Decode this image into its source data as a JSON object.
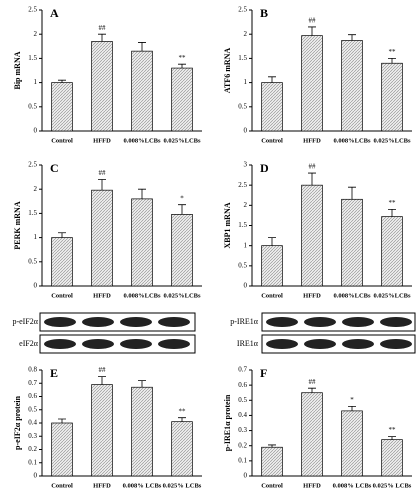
{
  "chart_data": [
    {
      "type": "bar",
      "title": "A",
      "y_label": "Bip mRNA",
      "categories": [
        "Control",
        "HFFD",
        "0.008%LCBs",
        "0.025%LCBs"
      ],
      "values": [
        1.0,
        1.85,
        1.65,
        1.3
      ],
      "errors": [
        0.05,
        0.15,
        0.18,
        0.08
      ],
      "markers": [
        null,
        "##",
        null,
        "**"
      ],
      "color": "#d9d9d9",
      "ylim": [
        0,
        2.5
      ],
      "yticks": [
        0,
        0.5,
        1,
        1.5,
        2,
        2.5
      ]
    },
    {
      "type": "bar",
      "title": "B",
      "y_label": "ATF6 mRNA",
      "categories": [
        "Control",
        "HFFD",
        "0.008%LCBs",
        "0.025%LCBs"
      ],
      "values": [
        1.0,
        1.97,
        1.87,
        1.4
      ],
      "errors": [
        0.12,
        0.18,
        0.12,
        0.1
      ],
      "markers": [
        null,
        "##",
        null,
        "**"
      ],
      "color": "#d9d9d9",
      "ylim": [
        0,
        2.5
      ],
      "yticks": [
        0,
        0.5,
        1,
        1.5,
        2,
        2.5
      ]
    },
    {
      "type": "bar",
      "title": "C",
      "y_label": "PERK mRNA",
      "categories": [
        "Control",
        "HFFD",
        "0.008%LCBs",
        "0.025%LCBs"
      ],
      "values": [
        1.0,
        1.98,
        1.8,
        1.48
      ],
      "errors": [
        0.1,
        0.22,
        0.2,
        0.2
      ],
      "markers": [
        null,
        "##",
        null,
        "*"
      ],
      "color": "#d9d9d9",
      "ylim": [
        0,
        2.5
      ],
      "yticks": [
        0,
        0.5,
        1,
        1.5,
        2,
        2.5
      ]
    },
    {
      "type": "bar",
      "title": "D",
      "y_label": "XBP1 mRNA",
      "categories": [
        "Control",
        "HFFD",
        "0.008%LCBs",
        "0.025%LCBs"
      ],
      "values": [
        1.0,
        2.5,
        2.15,
        1.72
      ],
      "errors": [
        0.2,
        0.3,
        0.3,
        0.18
      ],
      "markers": [
        null,
        "##",
        null,
        "**"
      ],
      "color": "#d9d9d9",
      "ylim": [
        0,
        3
      ],
      "yticks": [
        0,
        0.5,
        1,
        1.5,
        2,
        2.5,
        3
      ]
    },
    {
      "type": "bar",
      "title": "E",
      "y_label": "p-eIF2α protein",
      "categories": [
        "Control",
        "HFFD",
        "0.008% LCBs",
        "0.025% LCBs"
      ],
      "values": [
        0.4,
        0.69,
        0.67,
        0.41
      ],
      "errors": [
        0.03,
        0.06,
        0.05,
        0.03
      ],
      "markers": [
        null,
        "##",
        null,
        "**"
      ],
      "color": "#d9d9d9",
      "ylim": [
        0,
        0.8
      ],
      "yticks": [
        0,
        0.1,
        0.2,
        0.3,
        0.4,
        0.5,
        0.6,
        0.7,
        0.8
      ]
    },
    {
      "type": "bar",
      "title": "F",
      "y_label": "p-IRE1α protein",
      "categories": [
        "Control",
        "HFFD",
        "0.008% LCBs",
        "0.025% LCBs"
      ],
      "values": [
        0.19,
        0.55,
        0.43,
        0.24
      ],
      "errors": [
        0.015,
        0.03,
        0.03,
        0.02
      ],
      "markers": [
        null,
        "##",
        "*",
        "**"
      ],
      "color": "#d9d9d9",
      "ylim": [
        0,
        0.7
      ],
      "yticks": [
        0,
        0.1,
        0.2,
        0.3,
        0.4,
        0.5,
        0.6,
        0.7
      ]
    }
  ],
  "blots": [
    {
      "labels": [
        "p-eIF2α",
        "eIF2α"
      ]
    },
    {
      "labels": [
        "p-IRE1α",
        "IRE1α"
      ]
    }
  ]
}
